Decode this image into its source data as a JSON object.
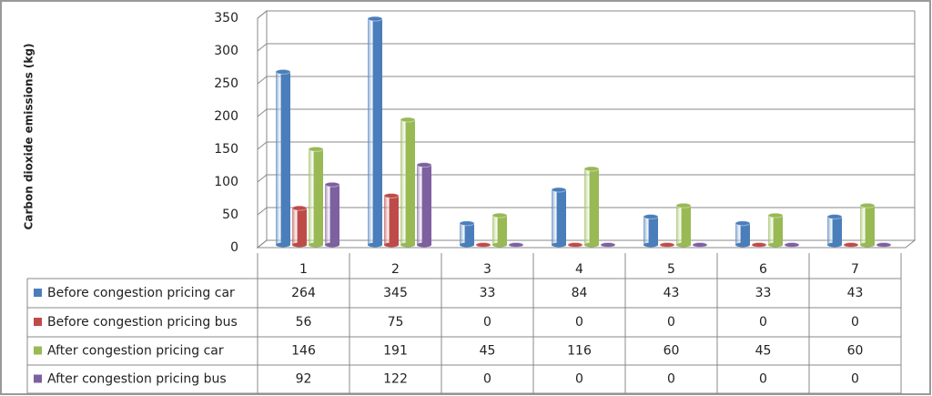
{
  "chart_data": {
    "type": "bar",
    "y_label": "Carbon dioxide emissions (kg)",
    "categories": [
      "1",
      "2",
      "3",
      "4",
      "5",
      "6",
      "7"
    ],
    "series": [
      {
        "name": "Before congestion pricing car",
        "color": "#4a7ebb",
        "values": [
          264,
          345,
          33,
          84,
          43,
          33,
          43
        ]
      },
      {
        "name": "Before congestion pricing bus",
        "color": "#be4b48",
        "values": [
          56,
          75,
          0,
          0,
          0,
          0,
          0
        ]
      },
      {
        "name": "After congestion pricing car",
        "color": "#98b954",
        "values": [
          146,
          191,
          45,
          116,
          60,
          45,
          60
        ]
      },
      {
        "name": "After congestion pricing bus",
        "color": "#7d60a0",
        "values": [
          92,
          122,
          0,
          0,
          0,
          0,
          0
        ]
      }
    ],
    "ylim": [
      0,
      350
    ],
    "yticks": [
      0,
      50,
      100,
      150,
      200,
      250,
      300,
      350
    ],
    "grid": true
  }
}
